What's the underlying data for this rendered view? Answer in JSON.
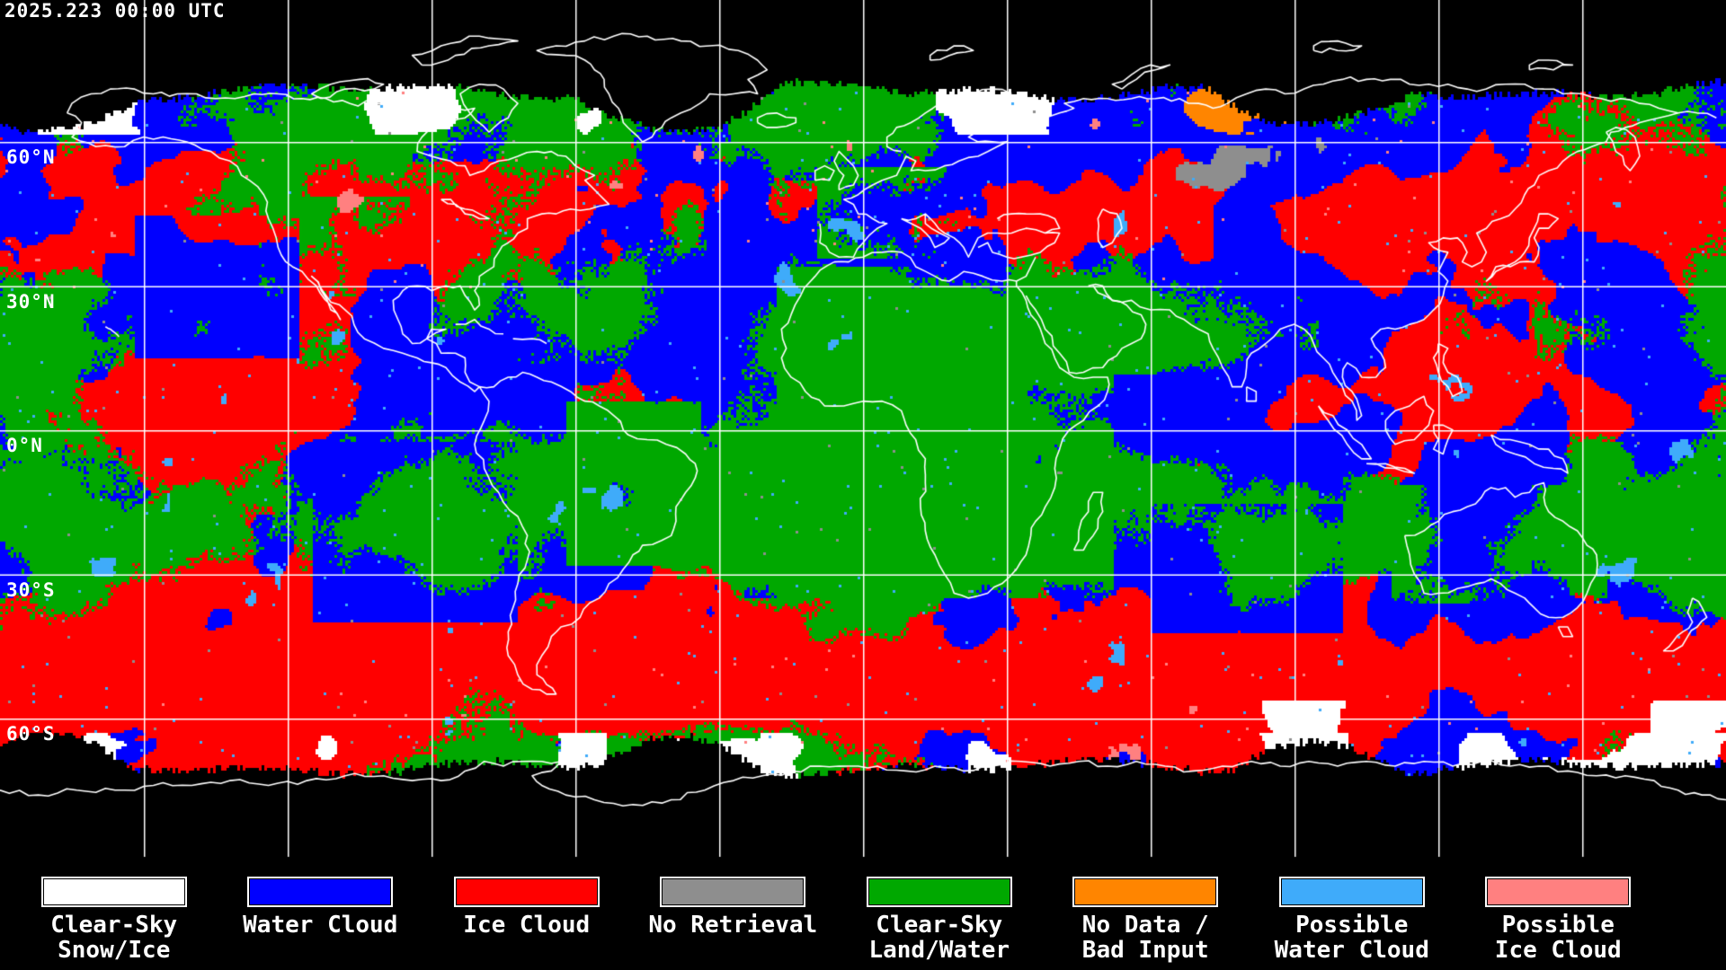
{
  "header": {
    "timestamp": "2025.223 00:00 UTC"
  },
  "map": {
    "projection": "equirectangular",
    "background": "#000000",
    "grid_color": "#ffffff",
    "coastline_color": "#ffffff",
    "lon_grid_spacing_deg": 30,
    "lat_grid_spacing_deg": 30,
    "latitude_labels": [
      {
        "label": "60°N"
      },
      {
        "label": "30°N"
      },
      {
        "label": "0°N"
      },
      {
        "label": "30°S"
      },
      {
        "label": "60°S"
      }
    ]
  },
  "classes": {
    "clear_sky_snow_ice": "#ffffff",
    "water_cloud": "#0000ff",
    "ice_cloud": "#ff0000",
    "no_retrieval": "#8e8e8e",
    "clear_sky_land_water": "#00a800",
    "no_data_bad_input": "#ff8500",
    "possible_water_cloud": "#3fabfa",
    "possible_ice_cloud": "#ff8080"
  },
  "legend": {
    "items": [
      {
        "name": "clear-sky-snow-ice",
        "color_key": "clear_sky_snow_ice",
        "line1": "Clear-Sky",
        "line2": "Snow/Ice"
      },
      {
        "name": "water-cloud",
        "color_key": "water_cloud",
        "line1": "Water Cloud",
        "line2": ""
      },
      {
        "name": "ice-cloud",
        "color_key": "ice_cloud",
        "line1": "Ice Cloud",
        "line2": ""
      },
      {
        "name": "no-retrieval",
        "color_key": "no_retrieval",
        "line1": "No Retrieval",
        "line2": ""
      },
      {
        "name": "clear-sky-land-water",
        "color_key": "clear_sky_land_water",
        "line1": "Clear-Sky",
        "line2": "Land/Water"
      },
      {
        "name": "no-data-bad-input",
        "color_key": "no_data_bad_input",
        "line1": "No Data /",
        "line2": "Bad Input"
      },
      {
        "name": "possible-water-cloud",
        "color_key": "possible_water_cloud",
        "line1": "Possible",
        "line2": "Water Cloud"
      },
      {
        "name": "possible-ice-cloud",
        "color_key": "possible_ice_cloud",
        "line1": "Possible",
        "line2": "Ice Cloud"
      }
    ]
  }
}
